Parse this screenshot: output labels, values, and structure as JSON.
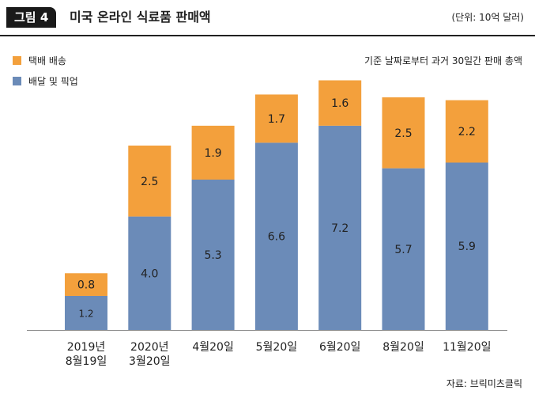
{
  "figure": {
    "label": "그림 4",
    "title": "미국 온라인 식료품 판매액",
    "unit": "(단위: 10억 달러)",
    "period_note": "기준 날짜로부터 과거 30일간 판매 총액",
    "source": "자료: 브릭미츠클릭"
  },
  "colors": {
    "pickup": "#6b8bb8",
    "delivery": "#f3a03c",
    "axis": "#888888"
  },
  "chart_data": {
    "type": "bar",
    "stacked": true,
    "title": "미국 온라인 식료품 판매액",
    "ylabel": "(단위: 10억 달러)",
    "xlabel": "",
    "ylim": [
      0,
      10
    ],
    "categories": [
      "2019년 8월19일",
      "2020년 3월20일",
      "4월20일",
      "5월20일",
      "6월20일",
      "8월20일",
      "11월20일"
    ],
    "category_lines": [
      [
        "2019년",
        "8월19일"
      ],
      [
        "2020년",
        "3월20일"
      ],
      [
        "4월20일"
      ],
      [
        "5월20일"
      ],
      [
        "6월20일"
      ],
      [
        "8월20일"
      ],
      [
        "11월20일"
      ]
    ],
    "series": [
      {
        "name": "배달 및 픽업",
        "values": [
          1.2,
          4.0,
          5.3,
          6.6,
          7.2,
          5.7,
          5.9
        ],
        "labels": [
          "1.2",
          "4.0",
          "5.3",
          "6.6",
          "7.2",
          "5.7",
          "5.9"
        ]
      },
      {
        "name": "택배 배송",
        "values": [
          0.8,
          2.5,
          1.9,
          1.7,
          1.6,
          2.5,
          2.2
        ],
        "labels": [
          "0.8",
          "2.5",
          "1.9",
          "1.7",
          "1.6",
          "2.5",
          "2.2"
        ]
      }
    ],
    "legend": [
      {
        "name": "택배 배송",
        "color": "#f3a03c"
      },
      {
        "name": "배달 및 픽업",
        "color": "#6b8bb8"
      }
    ],
    "legend_position": "top-left",
    "grid": false
  }
}
